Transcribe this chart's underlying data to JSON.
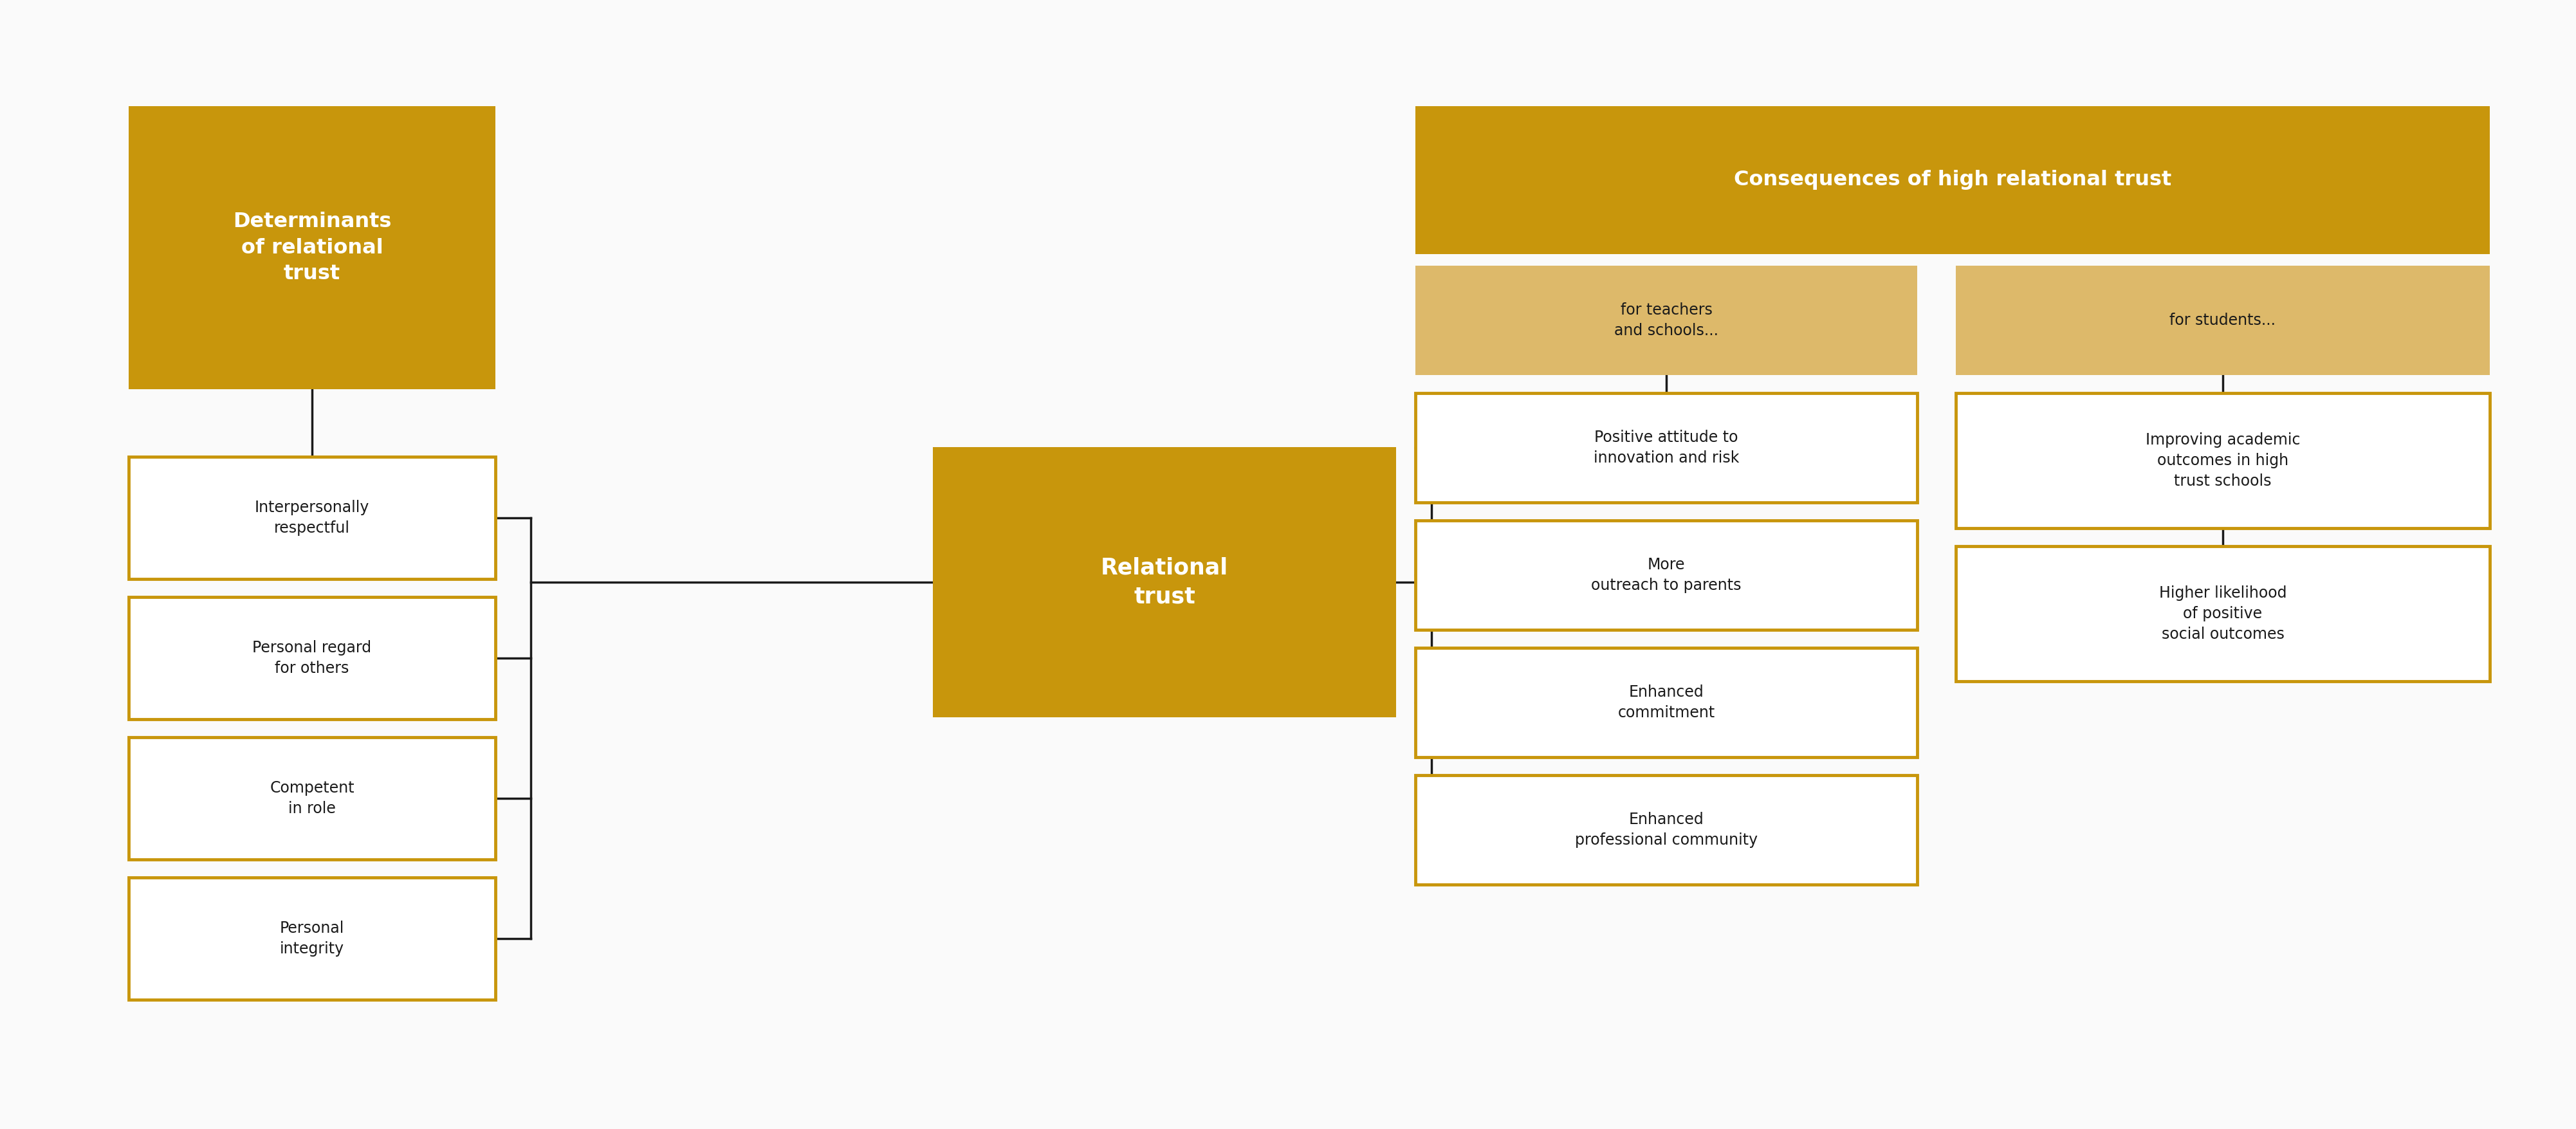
{
  "bg_color": "#FAFAFA",
  "gold_dark": "#C8960C",
  "gold_lighter": "#DDB96A",
  "white": "#FFFFFF",
  "black": "#1A1A1A",
  "line_color": "#1A1A1A",
  "box_det_title": "Determinants\nof relational\ntrust",
  "box_rel_title": "Relational\ntrust",
  "title_top": "Consequences of high relational trust",
  "left_boxes": [
    "Interpersonally\nrespectful",
    "Personal regard\nfor others",
    "Competent\nin role",
    "Personal\nintegrity"
  ],
  "mid_header_teachers": "for teachers\nand schools...",
  "mid_header_students": "for students...",
  "right_boxes_teachers": [
    "Positive attitude to\ninnovation and risk",
    "More\noutreach to parents",
    "Enhanced\ncommitment",
    "Enhanced\nprofessional community"
  ],
  "right_boxes_students": [
    "Improving academic\noutcomes in high\ntrust schools",
    "Higher likelihood\nof positive\nsocial outcomes"
  ]
}
